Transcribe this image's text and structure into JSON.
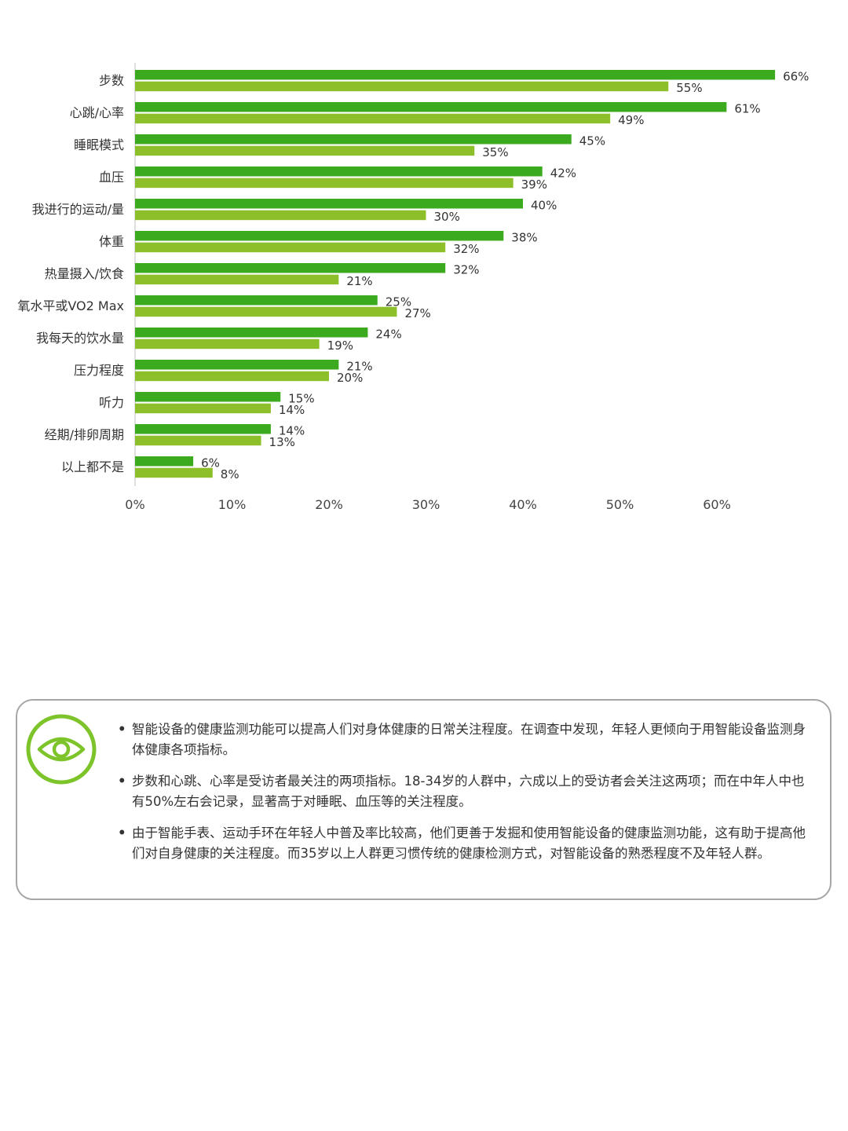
{
  "chart_data": {
    "type": "bar",
    "orientation": "horizontal",
    "categories": [
      "步数",
      "心跳/心率",
      "睡眠模式",
      "血压",
      "我进行的运动/量",
      "体重",
      "热量摄入/饮食",
      "氧水平或VO2 Max",
      "我每天的饮水量",
      "压力程度",
      "听力",
      "经期/排卵周期",
      "以上都不是"
    ],
    "category_label_displayed": [
      "步数",
      "心跳/心率",
      "睡眠模式",
      "血压",
      "我进行的运动/量",
      "体重",
      "热量摄入/饮食",
      "氧水平或VO2 Max",
      "我每天的饮水量",
      "压力程度",
      "听力",
      "经期/排卵周期",
      "以上都不是"
    ],
    "series": [
      {
        "values": [
          66,
          61,
          45,
          42,
          40,
          38,
          32,
          25,
          24,
          21,
          15,
          14,
          6
        ],
        "color": "#3caa1e"
      },
      {
        "values": [
          55,
          49,
          35,
          39,
          30,
          32,
          21,
          27,
          19,
          20,
          14,
          13,
          8
        ],
        "color": "#8cbf2a"
      }
    ],
    "value_suffix": "%",
    "x_ticks": [
      "0%",
      "10%",
      "20%",
      "30%",
      "40%",
      "50%",
      "60%"
    ],
    "xlim": [
      0,
      66
    ],
    "grid": false,
    "legend": "none"
  },
  "note": {
    "icon": "eye-icon",
    "accent_color": "#7dc42a",
    "bullets": [
      "智能设备的健康监测功能可以提高人们对身体健康的日常关注程度。在调查中发现，年轻人更倾向于用智能设备监测身体健康各项指标。",
      "步数和心跳、心率是受访者最关注的两项指标。18-34岁的人群中，六成以上的受访者会关注这两项；而在中年人中也有50%左右会记录，显著高于对睡眠、血压等的关注程度。",
      "由于智能手表、运动手环在年轻人中普及率比较高，他们更善于发掘和使用智能设备的健康监测功能，这有助于提高他们对自身健康的关注程度。而35岁以上人群更习惯传统的健康检测方式，对智能设备的熟悉程度不及年轻人群。"
    ]
  }
}
